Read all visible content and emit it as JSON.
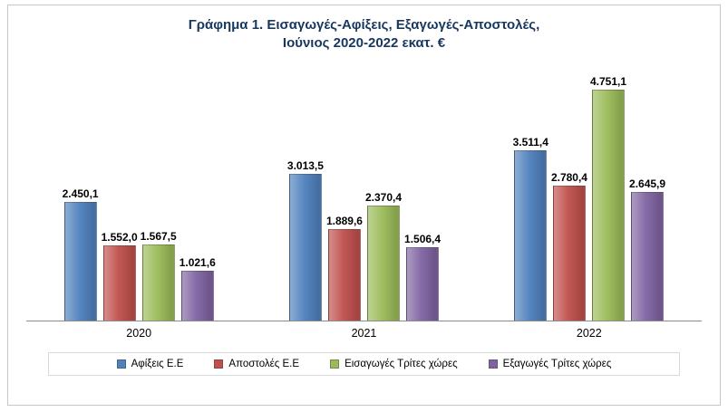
{
  "title": {
    "line1": "Γράφημα 1. Εισαγωγές-Αφίξεις, Εξαγωγές-Αποστολές,",
    "line2": "Ιούνιος 2020-2022 εκατ. €"
  },
  "chart_data": {
    "type": "bar",
    "title": "Γράφημα 1. Εισαγωγές-Αφίξεις, Εξαγωγές-Αποστολές, Ιούνιος 2020-2022 εκατ. €",
    "categories": [
      "2020",
      "2021",
      "2022"
    ],
    "series": [
      {
        "name": "Αφίξεις Ε.Ε",
        "color": "#4F81BD",
        "values": [
          2450.1,
          3013.5,
          3511.4
        ],
        "labels": [
          "2.450,1",
          "3.013,5",
          "3.511,4"
        ]
      },
      {
        "name": "Αποστολές  Ε.Ε",
        "color": "#C0504D",
        "values": [
          1552.0,
          1889.6,
          2780.4
        ],
        "labels": [
          "1.552,0",
          "1.889,6",
          "2.780,4"
        ]
      },
      {
        "name": "Εισαγωγές Τρίτες χώρες",
        "color": "#9BBB59",
        "values": [
          1567.5,
          2370.4,
          4751.1
        ],
        "labels": [
          "1.567,5",
          "2.370,4",
          "4.751,1"
        ]
      },
      {
        "name": "Εξαγωγές Τρίτες χώρες",
        "color": "#8064A2",
        "values": [
          1021.6,
          1506.4,
          2645.9
        ],
        "labels": [
          "1.021,6",
          "1.506,4",
          "2.645,9"
        ]
      }
    ],
    "xlabel": "",
    "ylabel": "",
    "ylim": [
      0,
      5000
    ],
    "grid": false,
    "legend_position": "bottom",
    "data_labels": true
  }
}
